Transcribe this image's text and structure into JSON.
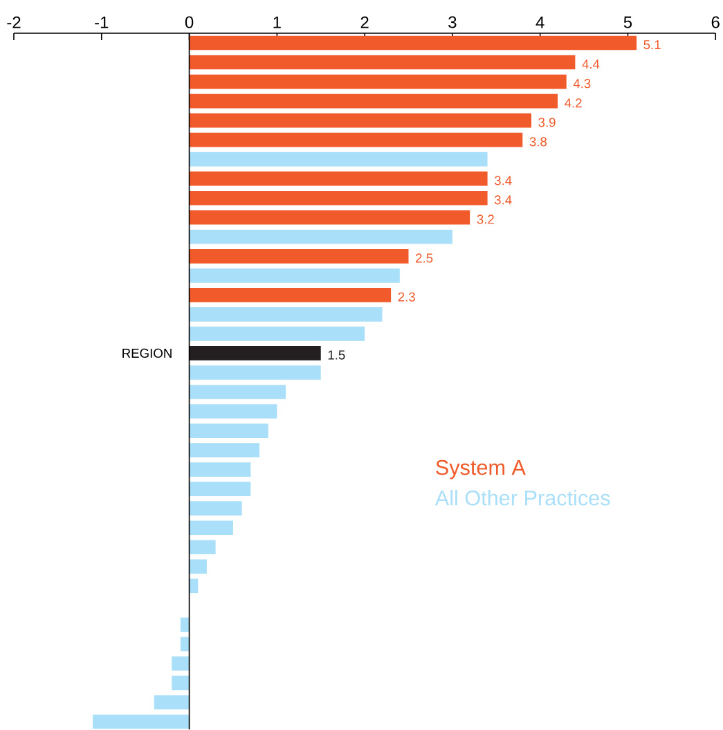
{
  "chart_data": {
    "type": "bar",
    "orientation": "horizontal",
    "categories": [
      null,
      null,
      null,
      null,
      null,
      null,
      null,
      null,
      null,
      null,
      null,
      null,
      null,
      null,
      null,
      null,
      "REGION",
      null,
      null,
      null,
      null,
      null,
      null,
      null,
      null,
      null,
      null,
      null,
      null,
      null,
      null,
      null,
      null,
      null,
      null,
      null
    ],
    "series": [
      {
        "name": "System A",
        "color": "#f15a2b",
        "values": [
          5.1,
          4.4,
          4.3,
          4.2,
          3.9,
          3.8,
          null,
          3.4,
          3.4,
          3.2,
          null,
          2.5,
          null,
          2.3,
          null,
          null,
          null,
          null,
          null,
          null,
          null,
          null,
          null,
          null,
          null,
          null,
          null,
          null,
          null,
          null,
          null,
          null,
          null,
          null,
          null,
          null
        ],
        "value_labels": [
          "5.1",
          "4.4",
          "4.3",
          "4.2",
          "3.9",
          "3.8",
          null,
          "3.4",
          "3.4",
          "3.2",
          null,
          "2.5",
          null,
          "2.3",
          null,
          null,
          null,
          null,
          null,
          null,
          null,
          null,
          null,
          null,
          null,
          null,
          null,
          null,
          null,
          null,
          null,
          null,
          null,
          null,
          null,
          null
        ]
      },
      {
        "name": "All Other Practices",
        "color": "#a9dff8",
        "values": [
          null,
          null,
          null,
          null,
          null,
          null,
          3.4,
          null,
          null,
          null,
          3.0,
          null,
          2.4,
          null,
          2.2,
          2.0,
          null,
          1.5,
          1.1,
          1.0,
          0.9,
          0.8,
          0.7,
          0.7,
          0.6,
          0.5,
          0.3,
          0.2,
          0.1,
          null,
          -0.1,
          -0.1,
          -0.2,
          -0.2,
          -0.4,
          -1.1
        ]
      },
      {
        "color": "#231f20",
        "values": [
          null,
          null,
          null,
          null,
          null,
          null,
          null,
          null,
          null,
          null,
          null,
          null,
          null,
          null,
          null,
          null,
          1.5,
          null,
          null,
          null,
          null,
          null,
          null,
          null,
          null,
          null,
          null,
          null,
          null,
          null,
          null,
          null,
          null,
          null,
          null,
          null
        ],
        "value_labels": [
          null,
          null,
          null,
          null,
          null,
          null,
          null,
          null,
          null,
          null,
          null,
          null,
          null,
          null,
          null,
          null,
          "1.5",
          null,
          null,
          null,
          null,
          null,
          null,
          null,
          null,
          null,
          null,
          null,
          null,
          null,
          null,
          null,
          null,
          null,
          null,
          null
        ]
      }
    ],
    "xlim": [
      -2,
      6
    ],
    "xticks": [
      -2,
      -1,
      0,
      1,
      2,
      3,
      4,
      5,
      6
    ],
    "legend": "right"
  }
}
